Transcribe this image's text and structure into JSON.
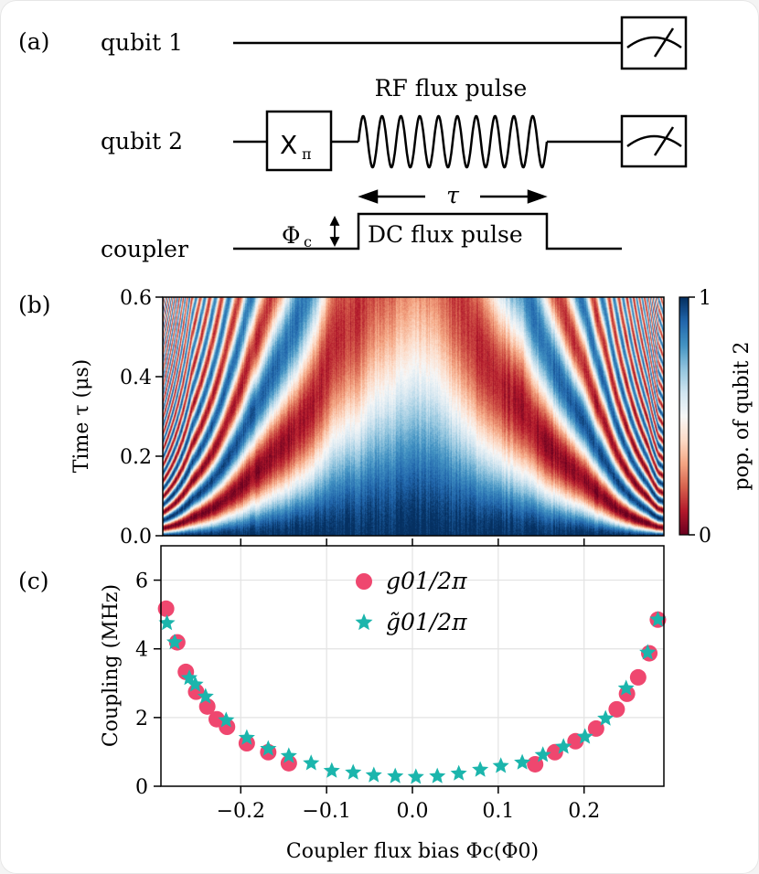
{
  "panels": {
    "a": {
      "tag": "(a)",
      "rows": [
        "qubit 1",
        "qubit 2",
        "coupler"
      ],
      "gate": "X",
      "gate_sub": "π",
      "rf_label": "RF flux pulse",
      "tau_label": "τ",
      "phi_label": "Φ",
      "phi_sub": "c",
      "dc_label": "DC flux pulse",
      "icons": [
        "measurement-meter-icon",
        "up-down-arrow-icon",
        "left-arrow-icon",
        "right-arrow-icon"
      ]
    },
    "b": {
      "tag": "(b)"
    },
    "c": {
      "tag": "(c)"
    }
  },
  "chart_data": [
    {
      "type": "heatmap",
      "panel": "b",
      "ylabel": "Time τ (μs)",
      "ylim": [
        0,
        0.6
      ],
      "yticks": [
        "0.0",
        "0.2",
        "0.4",
        "0.6"
      ],
      "xlim": [
        -0.293,
        0.293
      ],
      "colorbar": {
        "label": "pop. of qubit 2",
        "range": [
          0,
          1
        ],
        "ticks": [
          "0",
          "1"
        ],
        "colormap": "RdBu",
        "low_color": "#67001f",
        "high_color": "#053061"
      }
    },
    {
      "type": "scatter",
      "panel": "c",
      "xlabel": "Coupler flux bias Φc(Φ0)",
      "ylabel": "Coupling (MHz)",
      "xlim": [
        -0.293,
        0.293
      ],
      "ylim": [
        0,
        7
      ],
      "xticks": [
        "−0.2",
        "−0.1",
        "0.0",
        "0.1",
        "0.2"
      ],
      "xtick_values": [
        -0.2,
        -0.1,
        0.0,
        0.1,
        0.2
      ],
      "yticks": [
        "0",
        "2",
        "4",
        "6"
      ],
      "ytick_values": [
        0,
        2,
        4,
        6
      ],
      "grid": true,
      "legend_placement": "top-center",
      "series": [
        {
          "name": "g01/2π",
          "marker": "circle",
          "color": "#ef476f",
          "x": [
            -0.287,
            -0.274,
            -0.264,
            -0.252,
            -0.239,
            -0.228,
            -0.216,
            -0.193,
            -0.168,
            -0.144,
            0.143,
            0.166,
            0.19,
            0.214,
            0.238,
            0.25,
            0.263,
            0.276,
            0.286
          ],
          "y": [
            5.17,
            4.19,
            3.33,
            2.75,
            2.32,
            1.95,
            1.73,
            1.25,
            0.99,
            0.67,
            0.64,
            0.99,
            1.31,
            1.68,
            2.24,
            2.69,
            3.17,
            3.87,
            4.85
          ]
        },
        {
          "name": "g̃01/2π",
          "marker": "star",
          "color": "#1bb5ac",
          "x": [
            -0.286,
            -0.277,
            -0.26,
            -0.253,
            -0.241,
            -0.217,
            -0.193,
            -0.168,
            -0.144,
            -0.118,
            -0.094,
            -0.069,
            -0.045,
            -0.02,
            0.004,
            0.029,
            0.054,
            0.079,
            0.103,
            0.128,
            0.152,
            0.176,
            0.201,
            0.225,
            0.249,
            0.274,
            0.286
          ],
          "y": [
            4.75,
            4.19,
            3.15,
            2.96,
            2.61,
            1.92,
            1.41,
            1.09,
            0.88,
            0.67,
            0.45,
            0.4,
            0.32,
            0.29,
            0.27,
            0.29,
            0.37,
            0.48,
            0.59,
            0.69,
            0.91,
            1.15,
            1.44,
            1.97,
            2.85,
            3.89,
            4.85
          ]
        }
      ]
    }
  ]
}
